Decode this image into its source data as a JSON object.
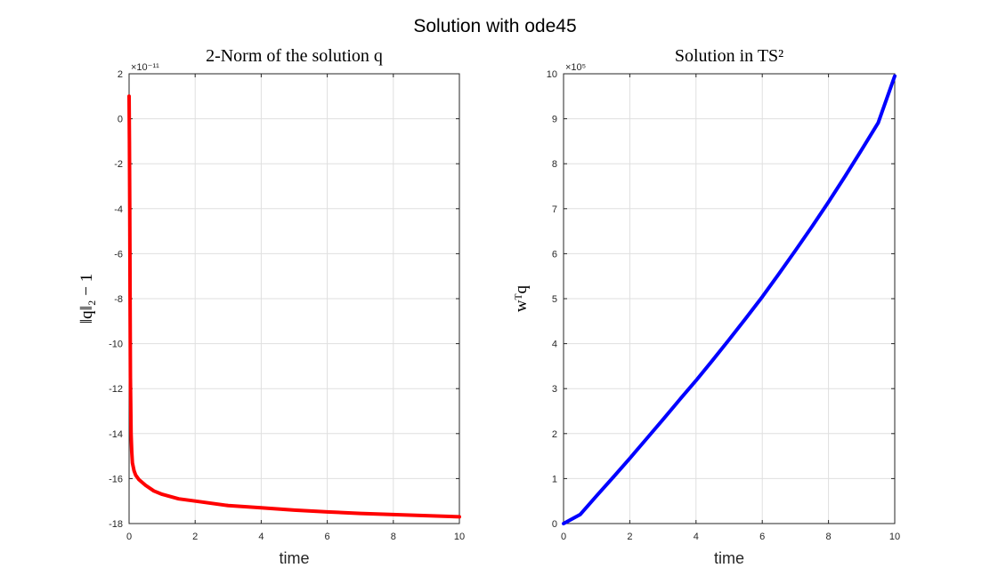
{
  "figure_title": "Solution with ode45",
  "chart_data": [
    {
      "type": "line",
      "title": "2-Norm of the solution q",
      "xlabel": "time",
      "ylabel": "‖q‖₂ − 1",
      "y_exponent_label": "×10⁻¹¹",
      "xlim": [
        0,
        10
      ],
      "ylim": [
        -18,
        2
      ],
      "xticks": [
        0,
        2,
        4,
        6,
        8,
        10
      ],
      "yticks": [
        -18,
        -16,
        -14,
        -12,
        -10,
        -8,
        -6,
        -4,
        -2,
        0,
        2
      ],
      "grid": true,
      "line_color": "#ff0000",
      "series": [
        {
          "x": [
            0,
            0.01,
            0.02,
            0.03,
            0.04,
            0.06,
            0.08,
            0.1,
            0.15,
            0.2,
            0.3,
            0.5,
            0.75,
            1,
            1.5,
            2,
            3,
            4,
            5,
            6,
            7,
            8,
            9,
            10
          ],
          "y": [
            1.0,
            -1.0,
            -4.0,
            -8.0,
            -11.5,
            -14.0,
            -14.8,
            -15.3,
            -15.65,
            -15.85,
            -16.05,
            -16.3,
            -16.55,
            -16.7,
            -16.9,
            -17.0,
            -17.2,
            -17.3,
            -17.4,
            -17.48,
            -17.55,
            -17.6,
            -17.65,
            -17.7
          ]
        }
      ]
    },
    {
      "type": "line",
      "title": "Solution in TS²",
      "xlabel": "time",
      "ylabel": "wᵀq",
      "y_exponent_label": "×10⁵",
      "xlim": [
        0,
        10
      ],
      "ylim": [
        0,
        10
      ],
      "xticks": [
        0,
        2,
        4,
        6,
        8,
        10
      ],
      "yticks": [
        0,
        1,
        2,
        3,
        4,
        5,
        6,
        7,
        8,
        9,
        10
      ],
      "grid": true,
      "line_color": "#0000ff",
      "series": [
        {
          "x": [
            0,
            0.5,
            1,
            1.5,
            2,
            2.5,
            3,
            3.5,
            4,
            4.5,
            5,
            5.5,
            6,
            6.5,
            7,
            7.5,
            8,
            8.5,
            9,
            9.5,
            10
          ],
          "y": [
            0,
            0.2,
            0.62,
            1.03,
            1.45,
            1.88,
            2.31,
            2.75,
            3.18,
            3.63,
            4.09,
            4.56,
            5.04,
            5.55,
            6.07,
            6.6,
            7.15,
            7.72,
            8.31,
            8.91,
            9.95
          ]
        }
      ]
    }
  ]
}
